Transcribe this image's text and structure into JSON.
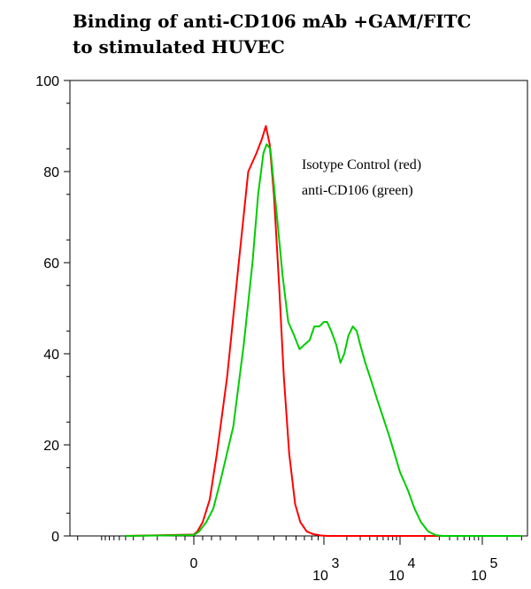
{
  "chart_data": {
    "type": "line",
    "title_lines": [
      "Binding of anti-CD106 mAb +GAM/FITC",
      "to stimulated HUVEC"
    ],
    "xlabel": "",
    "ylabel": "",
    "x_scale": "logicle",
    "ylim": [
      0,
      100
    ],
    "y_ticks": [
      "0",
      "20",
      "40",
      "60",
      "80",
      "100"
    ],
    "x_ticks": [
      {
        "base": "0",
        "exp": ""
      },
      {
        "base": "10",
        "exp": "3"
      },
      {
        "base": "10",
        "exp": "4"
      },
      {
        "base": "10",
        "exp": "5"
      }
    ],
    "legend_position": "top-right",
    "legend": [
      "Isotype Control (red)",
      "anti-CD106 (green)"
    ],
    "series": [
      {
        "color": "#ff0000",
        "points": [
          [
            -500,
            0
          ],
          [
            0,
            0.3
          ],
          [
            20,
            1
          ],
          [
            50,
            3
          ],
          [
            90,
            8
          ],
          [
            130,
            18
          ],
          [
            170,
            35
          ],
          [
            210,
            60
          ],
          [
            250,
            80
          ],
          [
            290,
            84
          ],
          [
            320,
            87
          ],
          [
            345,
            90
          ],
          [
            370,
            86
          ],
          [
            400,
            75
          ],
          [
            440,
            55
          ],
          [
            480,
            35
          ],
          [
            530,
            18
          ],
          [
            590,
            7
          ],
          [
            650,
            3
          ],
          [
            730,
            1
          ],
          [
            820,
            0.4
          ],
          [
            950,
            0.1
          ],
          [
            1100,
            0
          ],
          [
            300000,
            0
          ]
        ]
      },
      {
        "color": "#00cc00",
        "points": [
          [
            -500,
            0
          ],
          [
            0,
            0.2
          ],
          [
            30,
            1
          ],
          [
            70,
            3
          ],
          [
            110,
            6
          ],
          [
            150,
            12
          ],
          [
            190,
            24
          ],
          [
            230,
            42
          ],
          [
            270,
            60
          ],
          [
            300,
            75
          ],
          [
            330,
            84
          ],
          [
            350,
            86
          ],
          [
            375,
            85
          ],
          [
            400,
            77
          ],
          [
            430,
            68
          ],
          [
            470,
            57
          ],
          [
            520,
            47
          ],
          [
            580,
            44
          ],
          [
            640,
            41
          ],
          [
            700,
            42
          ],
          [
            770,
            43
          ],
          [
            840,
            46
          ],
          [
            920,
            46
          ],
          [
            1000,
            47
          ],
          [
            1100,
            47
          ],
          [
            1250,
            45
          ],
          [
            1450,
            42
          ],
          [
            1650,
            38
          ],
          [
            1850,
            40
          ],
          [
            2100,
            44
          ],
          [
            2400,
            46
          ],
          [
            2700,
            45
          ],
          [
            3000,
            42
          ],
          [
            3500,
            38
          ],
          [
            4200,
            34
          ],
          [
            5000,
            30
          ],
          [
            6000,
            26
          ],
          [
            7200,
            22
          ],
          [
            8500,
            18
          ],
          [
            10000,
            14
          ],
          [
            12500,
            10
          ],
          [
            15000,
            6
          ],
          [
            18000,
            3
          ],
          [
            22000,
            1
          ],
          [
            27000,
            0.2
          ],
          [
            32000,
            0
          ],
          [
            300000,
            0
          ]
        ]
      }
    ]
  }
}
